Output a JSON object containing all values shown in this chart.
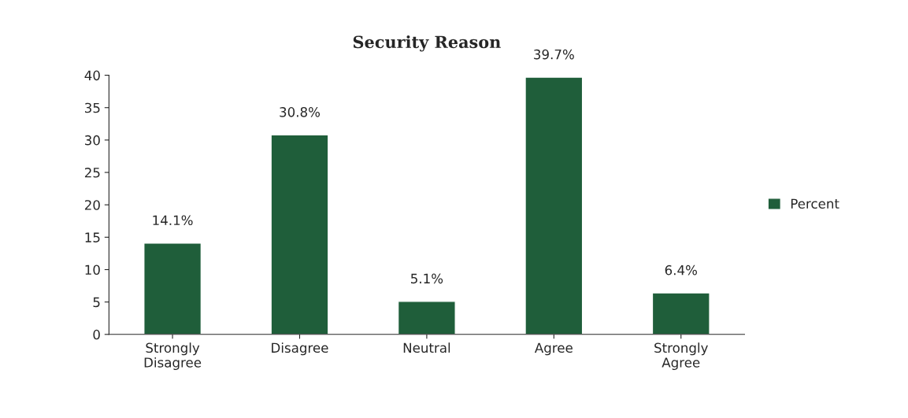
{
  "chart_data": {
    "type": "bar",
    "title": "Security Reason",
    "categories": [
      "Strongly\nDisagree",
      "Disagree",
      "Neutral",
      "Agree",
      "Strongly\nAgree"
    ],
    "series": [
      {
        "name": "Percent",
        "color": "#1f5e3a",
        "values": [
          14.1,
          30.8,
          5.1,
          39.7,
          6.4
        ]
      }
    ],
    "value_labels": [
      "14.1%",
      "30.8%",
      "5.1%",
      "39.7%",
      "6.4%"
    ],
    "ylim": [
      0,
      40
    ],
    "yticks": [
      0,
      5,
      10,
      15,
      20,
      25,
      30,
      35,
      40
    ],
    "grid": false,
    "legend": "right"
  }
}
